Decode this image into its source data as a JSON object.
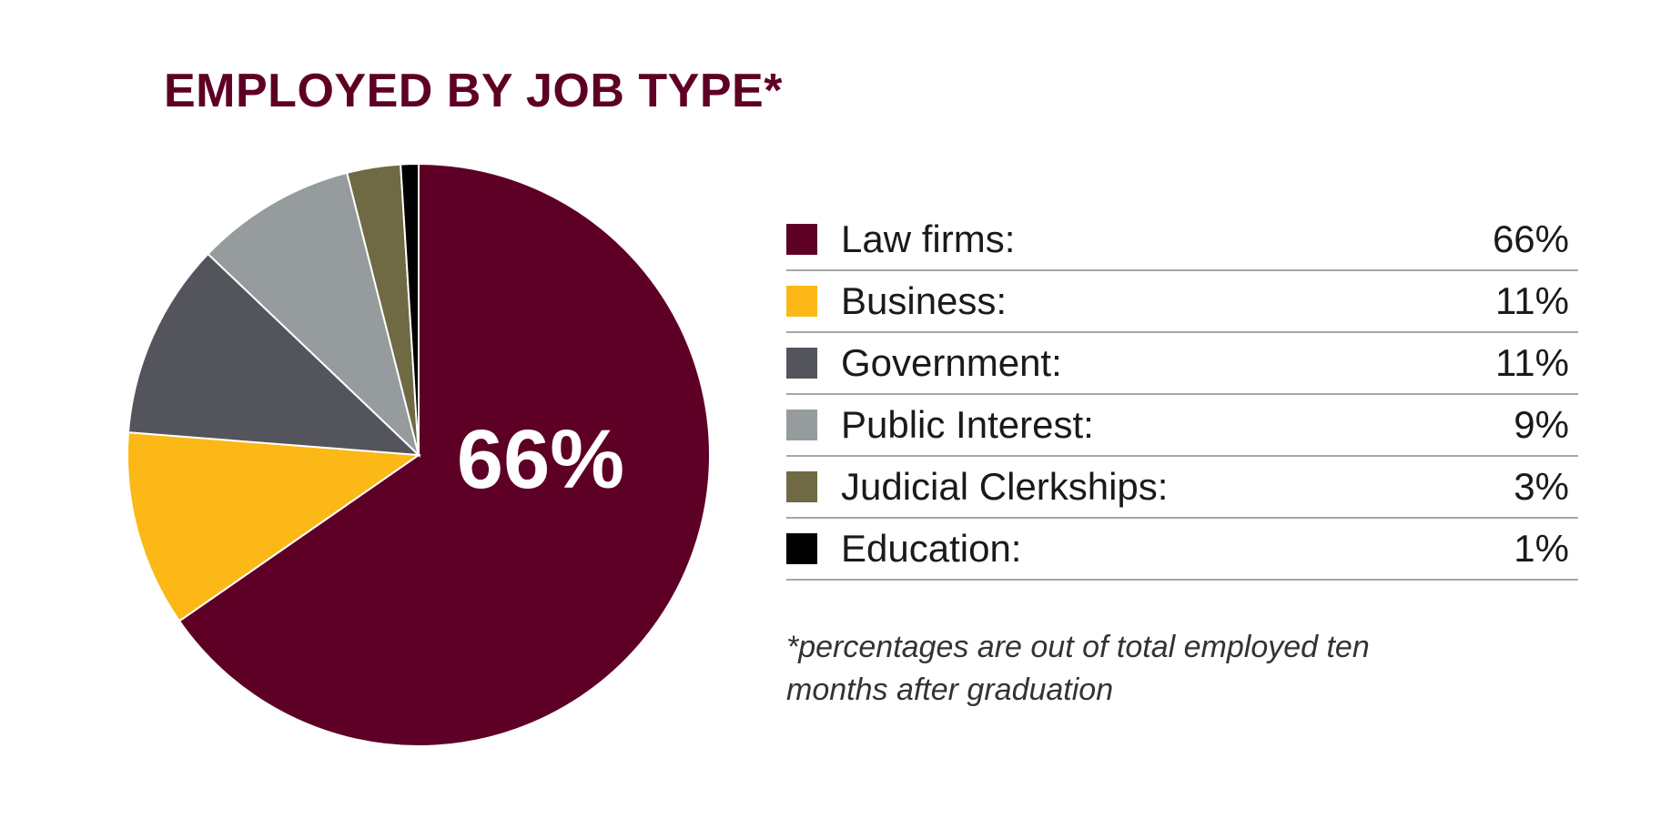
{
  "chart_data": {
    "type": "pie",
    "title": "EMPLOYED BY JOB TYPE*",
    "center_label": "66%",
    "slices": [
      {
        "label": "Law firms:",
        "value": 66,
        "value_text": "66%",
        "color": "#5e0025"
      },
      {
        "label": "Business:",
        "value": 11,
        "value_text": "11%",
        "color": "#fbb816"
      },
      {
        "label": "Government:",
        "value": 11,
        "value_text": "11%",
        "color": "#53545c"
      },
      {
        "label": "Public Interest:",
        "value": 9,
        "value_text": "9%",
        "color": "#969b9e"
      },
      {
        "label": "Judicial Clerkships:",
        "value": 3,
        "value_text": "3%",
        "color": "#6f6a44"
      },
      {
        "label": "Education:",
        "value": 1,
        "value_text": "1%",
        "color": "#000000"
      }
    ],
    "footnote": "*percentages are out of total employed ten months after graduation"
  }
}
